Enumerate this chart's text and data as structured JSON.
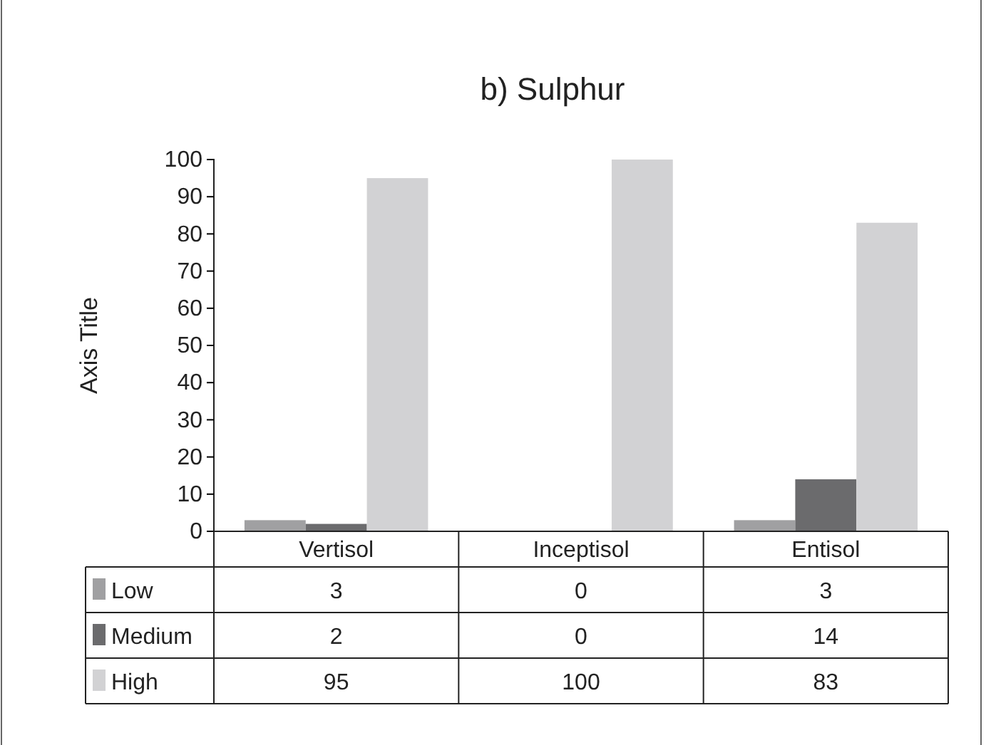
{
  "chart_data": {
    "type": "bar",
    "title": "b) Sulphur",
    "ylabel": "Axis Title",
    "categories": [
      "Vertisol",
      "Inceptisol",
      "Entisol"
    ],
    "series": [
      {
        "name": "Low",
        "color": "#a0a0a2",
        "values": [
          3,
          0,
          3
        ]
      },
      {
        "name": "Medium",
        "color": "#6b6b6d",
        "values": [
          2,
          0,
          14
        ]
      },
      {
        "name": "High",
        "color": "#d2d2d4",
        "values": [
          95,
          100,
          83
        ]
      }
    ],
    "ylim": [
      0,
      100
    ],
    "yticks": [
      0,
      10,
      20,
      30,
      40,
      50,
      60,
      70,
      80,
      90,
      100
    ],
    "grid": false,
    "data_labels": true,
    "legend": "bottom left"
  }
}
